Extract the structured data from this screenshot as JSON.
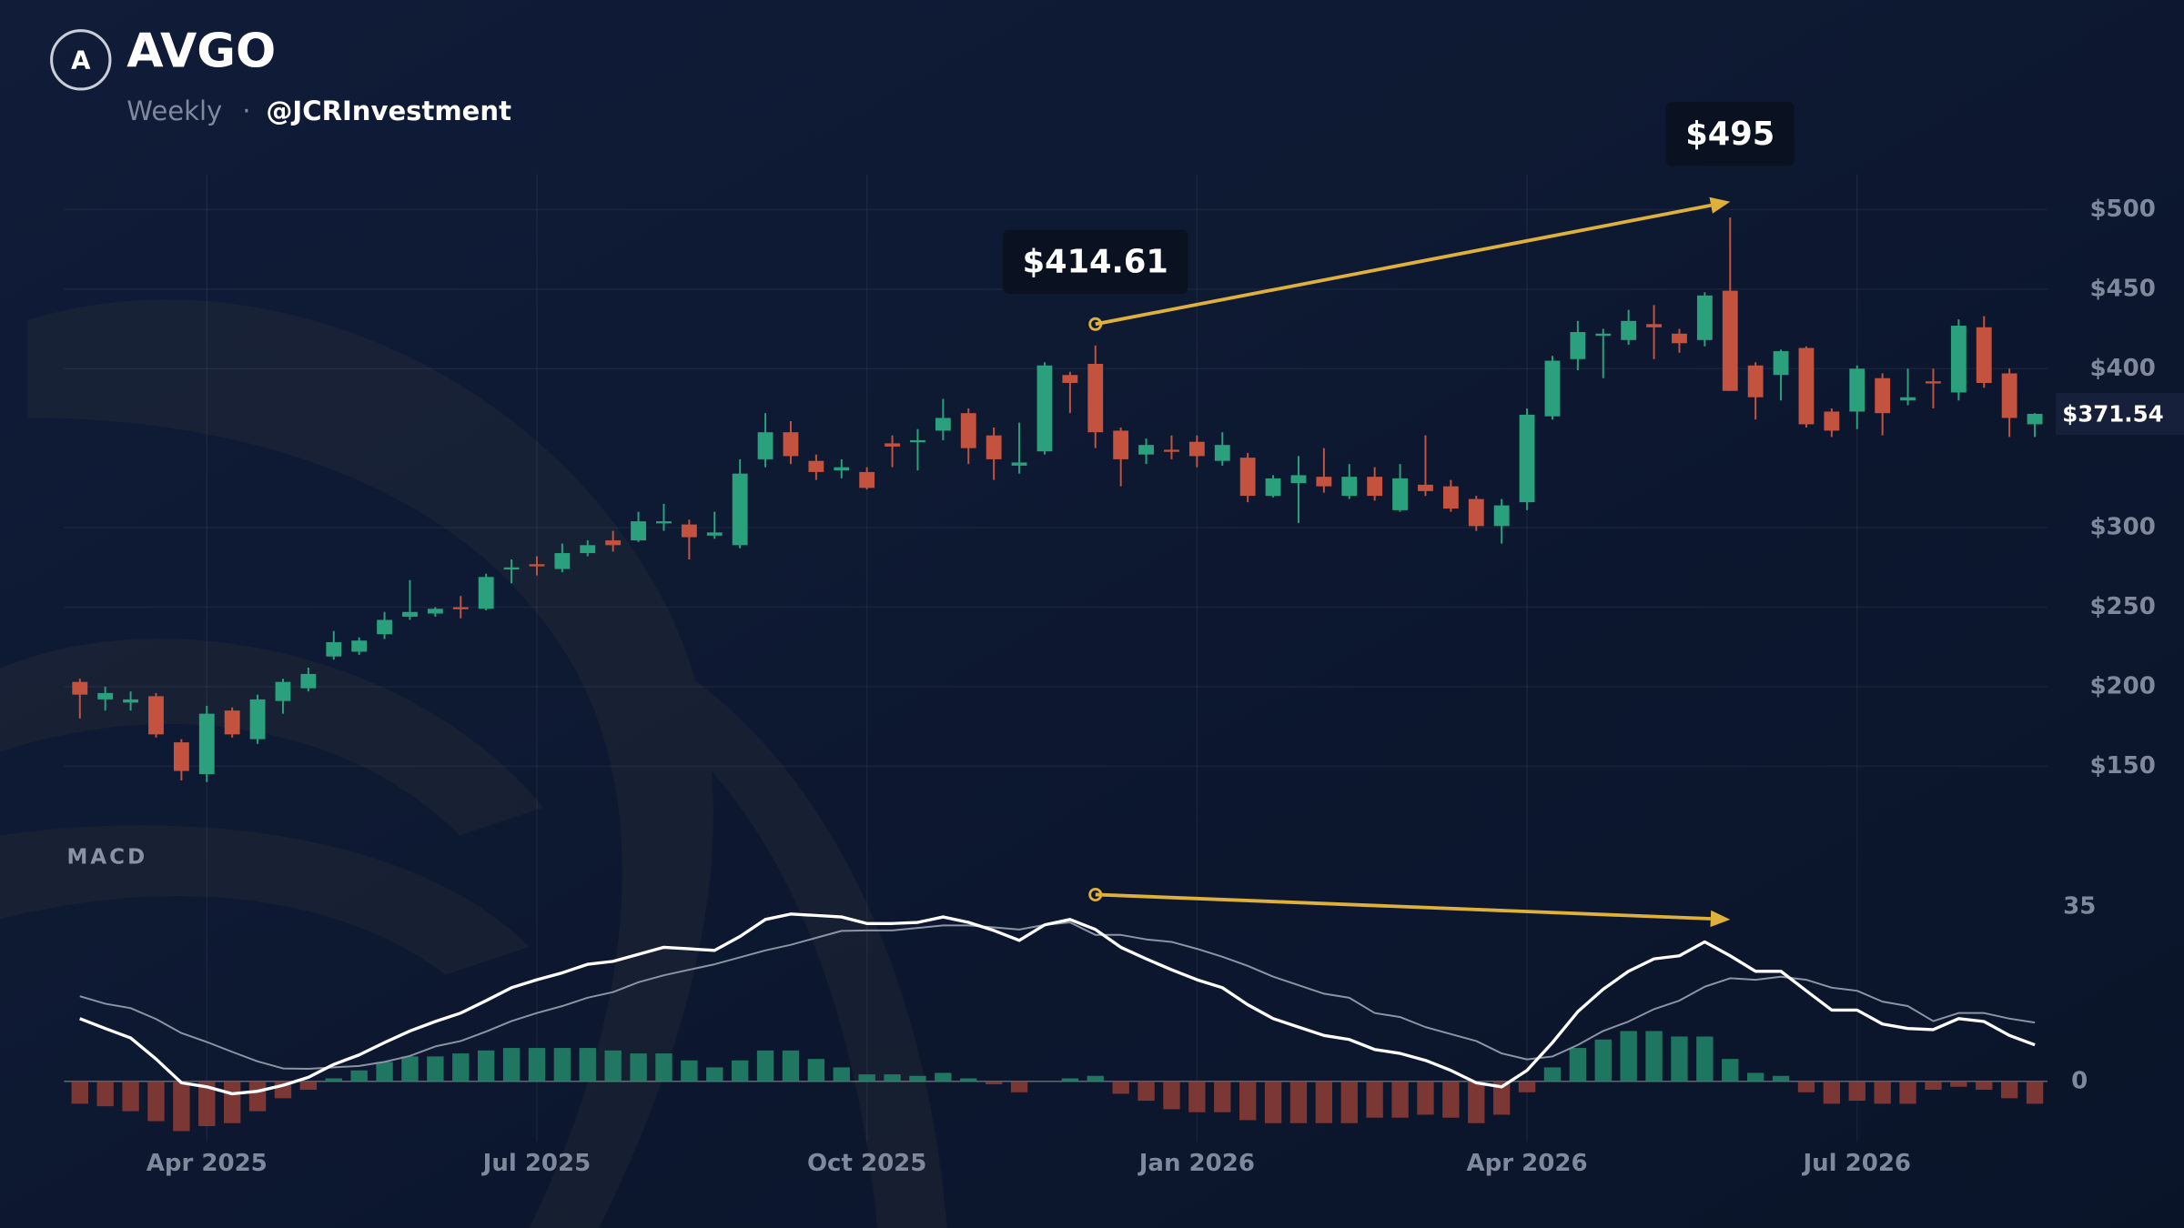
{
  "header": {
    "logo": "A",
    "ticker": "AVGO",
    "interval": "Weekly",
    "separator": "·",
    "author": "@JCRInvestment"
  },
  "chart_data": [
    {
      "type": "candlestick",
      "candles": {
        "open": [
          203,
          192,
          190,
          194,
          165,
          145,
          185,
          167,
          191,
          199,
          219,
          222,
          233,
          244,
          246,
          250,
          249,
          274,
          277,
          274,
          284,
          292,
          292,
          303,
          302,
          295,
          289,
          343,
          360,
          342,
          336,
          335,
          353,
          354,
          361,
          372,
          358,
          339,
          348,
          396,
          403,
          361,
          346,
          349,
          354,
          342,
          344,
          320,
          328,
          332,
          320,
          332,
          311,
          327,
          326,
          318,
          301,
          316,
          370,
          406,
          421,
          418,
          428,
          422,
          418,
          449,
          402,
          396,
          413,
          373,
          373,
          394,
          380,
          392,
          385,
          426,
          397,
          365
        ],
        "high": [
          205,
          200,
          197,
          196,
          167,
          188,
          187,
          195,
          205,
          212,
          235,
          231,
          247,
          267,
          250,
          257,
          271,
          280,
          282,
          290,
          292,
          298,
          310,
          315,
          305,
          310,
          343,
          372,
          367,
          346,
          343,
          338,
          358,
          362,
          381,
          375,
          363,
          366,
          404,
          398,
          414.61,
          363,
          356,
          358,
          358,
          360,
          347,
          333,
          345,
          350,
          340,
          338,
          340,
          358,
          330,
          320,
          318,
          375,
          408,
          430,
          425,
          437,
          440,
          425,
          448,
          495,
          404,
          412,
          414,
          375,
          402,
          397,
          400,
          400,
          431,
          433,
          400,
          372
        ],
        "low": [
          180,
          185,
          185,
          168,
          141,
          140,
          168,
          164,
          183,
          197,
          217,
          220,
          230,
          242,
          244,
          243,
          248,
          265,
          270,
          272,
          282,
          285,
          291,
          298,
          280,
          293,
          287,
          338,
          340,
          330,
          331,
          324,
          338,
          336,
          355,
          340,
          330,
          334,
          346,
          372,
          350,
          326,
          340,
          343,
          338,
          339,
          316,
          319,
          303,
          322,
          318,
          317,
          310,
          320,
          310,
          298,
          290,
          311,
          368,
          399,
          394,
          415,
          406,
          410,
          414,
          386,
          368,
          380,
          363,
          357,
          362,
          358,
          377,
          375,
          380,
          388,
          357,
          357
        ],
        "close": [
          195,
          196,
          192,
          170,
          147,
          183,
          170,
          192,
          203,
          208,
          228,
          229,
          242,
          247,
          249,
          249,
          269,
          275,
          276,
          284,
          289,
          289,
          304,
          304,
          294,
          297,
          334,
          360,
          345,
          335,
          338,
          325,
          351,
          355,
          369,
          350,
          343,
          341,
          402,
          391,
          360,
          343,
          352,
          348,
          345,
          352,
          320,
          331,
          333,
          326,
          332,
          320,
          331,
          323,
          312,
          301,
          314,
          371,
          405,
          423,
          422,
          430,
          426,
          416,
          446,
          386,
          382,
          411,
          365,
          361,
          400,
          372,
          382,
          391,
          427,
          391,
          369,
          371.54
        ]
      },
      "up_color": "#2aa17c",
      "down_color": "#c3533f",
      "xlim": [
        -1.5,
        77.5
      ],
      "xticks": [
        {
          "value": 5,
          "label": "Apr 2025"
        },
        {
          "value": 18,
          "label": "Jul 2025"
        },
        {
          "value": 31,
          "label": "Oct 2025"
        },
        {
          "value": 44,
          "label": "Jan 2026"
        },
        {
          "value": 57,
          "label": "Apr 2026"
        },
        {
          "value": 70,
          "label": "Jul 2026"
        }
      ],
      "ylim": [
        110,
        525
      ],
      "yticks": [
        {
          "value": 150,
          "label": "$150"
        },
        {
          "value": 200,
          "label": "$200"
        },
        {
          "value": 250,
          "label": "$250"
        },
        {
          "value": 300,
          "label": "$300"
        },
        {
          "value": 400,
          "label": "$400"
        },
        {
          "value": 450,
          "label": "$450"
        },
        {
          "value": 500,
          "label": "$500"
        }
      ],
      "grid": true,
      "last_price": {
        "value": 371.54,
        "label": "$371.54"
      },
      "annotations": [
        {
          "x": 40,
          "value": 414.61,
          "label": "$414.61"
        },
        {
          "x": 65,
          "value": 495,
          "label": "$495"
        }
      ],
      "trendline": {
        "x": [
          40,
          65
        ],
        "values": [
          428,
          505
        ],
        "color": "#e0b13a"
      }
    },
    {
      "type": "macd",
      "title": "MACD",
      "macd": {
        "color": "#ffffff",
        "values": [
          12.6,
          10.6,
          8.7,
          4.5,
          -0.3,
          -1.1,
          -2.5,
          -2,
          -0.8,
          0.8,
          3.4,
          5.3,
          7.8,
          10.1,
          12,
          13.7,
          16.2,
          18.8,
          20.4,
          21.8,
          23.5,
          24.1,
          25.5,
          26.9,
          26.6,
          26.3,
          29.1,
          32.5,
          33.6,
          33.3,
          33,
          31.7,
          31.7,
          31.9,
          33,
          31.9,
          30.3,
          28.3,
          31.4,
          32.5,
          30.5,
          26.9,
          24.6,
          22.4,
          20.4,
          18.8,
          15.4,
          12.6,
          10.9,
          9.2,
          8.4,
          6.4,
          5.6,
          4.2,
          2.2,
          -0.3,
          -1.1,
          2.2,
          7.8,
          14,
          18.5,
          22.1,
          24.6,
          25.2,
          28,
          25.2,
          22.1,
          22.1,
          18.2,
          14.3,
          14.3,
          11.5,
          10.6,
          10.4,
          12.6,
          12,
          9.2,
          7.3
        ]
      },
      "signal": {
        "color": "#8b93a5",
        "values": [
          17.1,
          15.6,
          14.7,
          12.5,
          9.7,
          7.9,
          5.9,
          4,
          2.6,
          2.5,
          2.8,
          3.1,
          3.9,
          5.1,
          7,
          8.1,
          10,
          12.1,
          13.7,
          15.1,
          16.8,
          17.9,
          19.9,
          21.3,
          22.4,
          23.5,
          24.9,
          26.3,
          27.4,
          28.8,
          30.2,
          30.3,
          30.3,
          30.8,
          31.3,
          31.3,
          30.9,
          30.5,
          31.4,
          31.9,
          29.4,
          29.4,
          28.5,
          28,
          26.6,
          25,
          23.2,
          21,
          19.3,
          17.6,
          16.8,
          13.7,
          12.9,
          10.9,
          9.5,
          8.1,
          5.6,
          4.4,
          5,
          7.3,
          10.1,
          12,
          14.5,
          16.2,
          19,
          20.7,
          20.4,
          21,
          20.4,
          18.8,
          18.2,
          16,
          15.1,
          12.1,
          13.7,
          13.7,
          12.6,
          11.8
        ]
      },
      "histogram": {
        "up_color": "#23876a",
        "down_color": "#8f3d35",
        "values": [
          -4.5,
          -5,
          -6,
          -8,
          -10,
          -9,
          -8.4,
          -6,
          -3.4,
          -1.7,
          0.6,
          2.2,
          3.9,
          5,
          5,
          5.6,
          6.2,
          6.7,
          6.7,
          6.7,
          6.7,
          6.2,
          5.6,
          5.6,
          4.2,
          2.8,
          4.2,
          6.2,
          6.2,
          4.5,
          2.8,
          1.4,
          1.4,
          1.1,
          1.7,
          0.6,
          -0.6,
          -2.2,
          0,
          0.6,
          1.1,
          -2.5,
          -3.9,
          -5.6,
          -6.2,
          -6.2,
          -7.8,
          -8.4,
          -8.4,
          -8.4,
          -8.4,
          -7.3,
          -7.3,
          -6.7,
          -7.3,
          -8.4,
          -6.7,
          -2.2,
          2.8,
          6.7,
          8.4,
          10.1,
          10.1,
          9,
          9,
          4.5,
          1.7,
          1.1,
          -2.2,
          -4.5,
          -3.9,
          -4.5,
          -4.5,
          -1.7,
          -1.1,
          -1.7,
          -3.4,
          -4.5
        ]
      },
      "xlim": [
        -1.5,
        77.5
      ],
      "ylim": [
        -11,
        41
      ],
      "yticks": [
        0,
        35
      ],
      "trendline": {
        "x": [
          40,
          65
        ],
        "values": [
          37.5,
          32.5
        ],
        "color": "#e0b13a"
      }
    }
  ]
}
